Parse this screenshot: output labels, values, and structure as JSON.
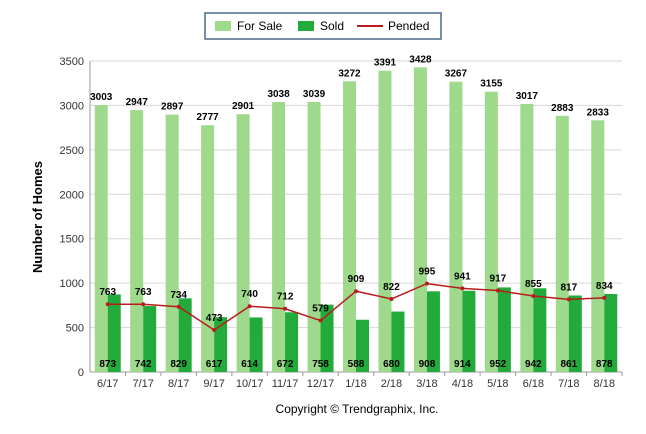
{
  "chart_data": {
    "type": "bar",
    "categories": [
      "6/17",
      "7/17",
      "8/17",
      "9/17",
      "10/17",
      "11/17",
      "12/17",
      "1/18",
      "2/18",
      "3/18",
      "4/18",
      "5/18",
      "6/18",
      "7/18",
      "8/18"
    ],
    "series": [
      {
        "name": "For Sale",
        "type": "bar",
        "color": "#9ed98c",
        "values": [
          3003,
          2947,
          2897,
          2777,
          2901,
          3038,
          3039,
          3272,
          3391,
          3428,
          3267,
          3155,
          3017,
          2883,
          2833
        ]
      },
      {
        "name": "Sold",
        "type": "bar",
        "color": "#22aa3a",
        "values": [
          873,
          742,
          829,
          617,
          614,
          672,
          758,
          588,
          680,
          908,
          914,
          952,
          942,
          861,
          878
        ]
      },
      {
        "name": "Pended",
        "type": "line",
        "color": "#b81c1c",
        "values": [
          763,
          763,
          734,
          473,
          740,
          712,
          579,
          909,
          822,
          995,
          941,
          917,
          855,
          817,
          834
        ]
      }
    ],
    "ylabel": "Number of Homes",
    "ylim": [
      0,
      3500
    ],
    "yticks": [
      0,
      500,
      1000,
      1500,
      2000,
      2500,
      3000,
      3500
    ],
    "grid": true,
    "legend_position": "top-center",
    "copyright": "Copyright © Trendgraphix, Inc."
  }
}
